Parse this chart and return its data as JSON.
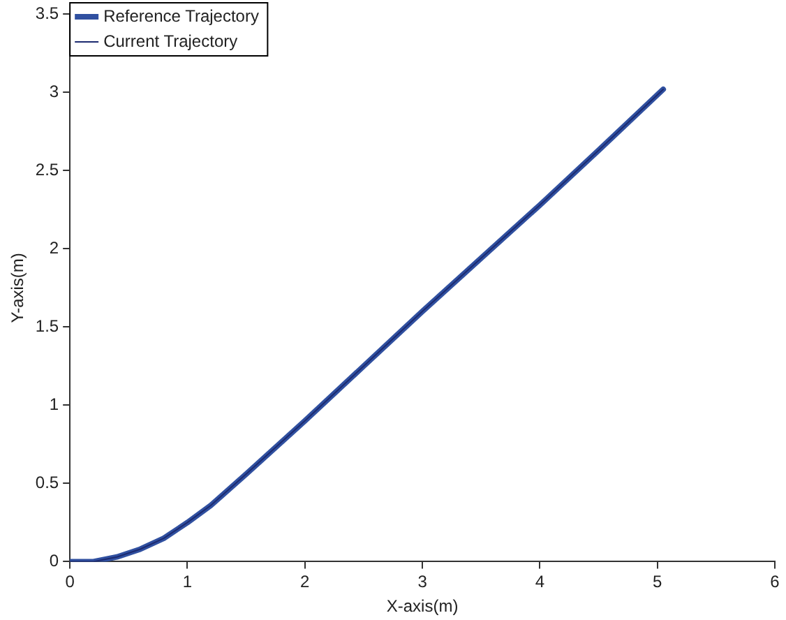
{
  "chart_data": {
    "type": "line",
    "xlabel": "X-axis(m)",
    "ylabel": "Y-axis(m)",
    "xlim": [
      0,
      6
    ],
    "xticks": [
      0,
      1,
      2,
      3,
      4,
      5,
      6
    ],
    "ylim": [
      0,
      3.5
    ],
    "yticks": [
      0,
      0.5,
      1,
      1.5,
      2,
      2.5,
      3,
      3.5
    ],
    "grid": false,
    "legend": "top left",
    "marker": "none",
    "line_style": "solid",
    "series": [
      {
        "name": "Reference Trajectory",
        "color": "#3050a0",
        "x": [
          0,
          0.2,
          0.4,
          0.6,
          0.8,
          1,
          1.2,
          1.5,
          2,
          2.5,
          3,
          3.5,
          4,
          4.5,
          5.05
        ],
        "values": [
          0,
          0,
          0.03,
          0.08,
          0.15,
          0.25,
          0.36,
          0.56,
          0.9,
          1.25,
          1.6,
          1.94,
          2.28,
          2.63,
          3.02
        ]
      },
      {
        "name": "Current Trajectory",
        "color": "#1c2a70",
        "x": [
          0,
          0.2,
          0.4,
          0.6,
          0.8,
          1,
          1.2,
          1.5,
          2,
          2.5,
          3,
          3.5,
          4,
          4.5,
          5.05
        ],
        "values": [
          0,
          0,
          0.03,
          0.08,
          0.15,
          0.25,
          0.36,
          0.56,
          0.9,
          1.25,
          1.6,
          1.94,
          2.28,
          2.63,
          3.02
        ]
      }
    ]
  }
}
